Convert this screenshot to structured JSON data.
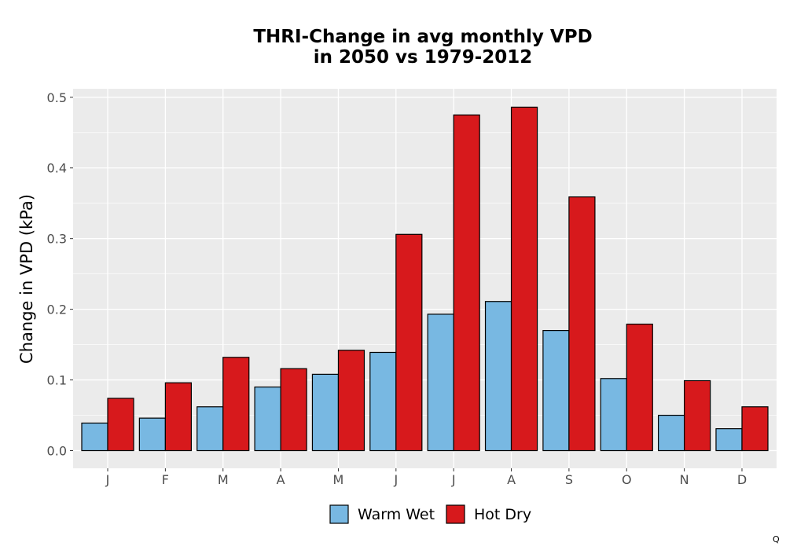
{
  "chart_data": {
    "type": "bar",
    "title_lines": [
      "THRI-Change in avg monthly VPD",
      "in 2050 vs 1979-2012"
    ],
    "xlabel": "",
    "ylabel": "Change in VPD (kPa)",
    "categories": [
      "J",
      "F",
      "M",
      "A",
      "M",
      "J",
      "J",
      "A",
      "S",
      "O",
      "N",
      "D"
    ],
    "series": [
      {
        "name": "Warm Wet",
        "color": "#78b8e2",
        "values": [
          0.039,
          0.046,
          0.062,
          0.09,
          0.108,
          0.139,
          0.193,
          0.211,
          0.17,
          0.102,
          0.05,
          0.031
        ]
      },
      {
        "name": "Hot Dry",
        "color": "#d7191c",
        "values": [
          0.074,
          0.096,
          0.132,
          0.116,
          0.142,
          0.306,
          0.475,
          0.486,
          0.359,
          0.179,
          0.099,
          0.062
        ]
      }
    ],
    "ylim": [
      -0.025,
      0.512
    ],
    "yticks": [
      0.0,
      0.1,
      0.2,
      0.3,
      0.4,
      0.5
    ],
    "ytick_labels": [
      "0.0",
      "0.1",
      "0.2",
      "0.3",
      "0.4",
      "0.5"
    ],
    "grid": true,
    "legend_position": "bottom",
    "panel_color": "#ebebeb"
  },
  "corner_mark": "Q"
}
